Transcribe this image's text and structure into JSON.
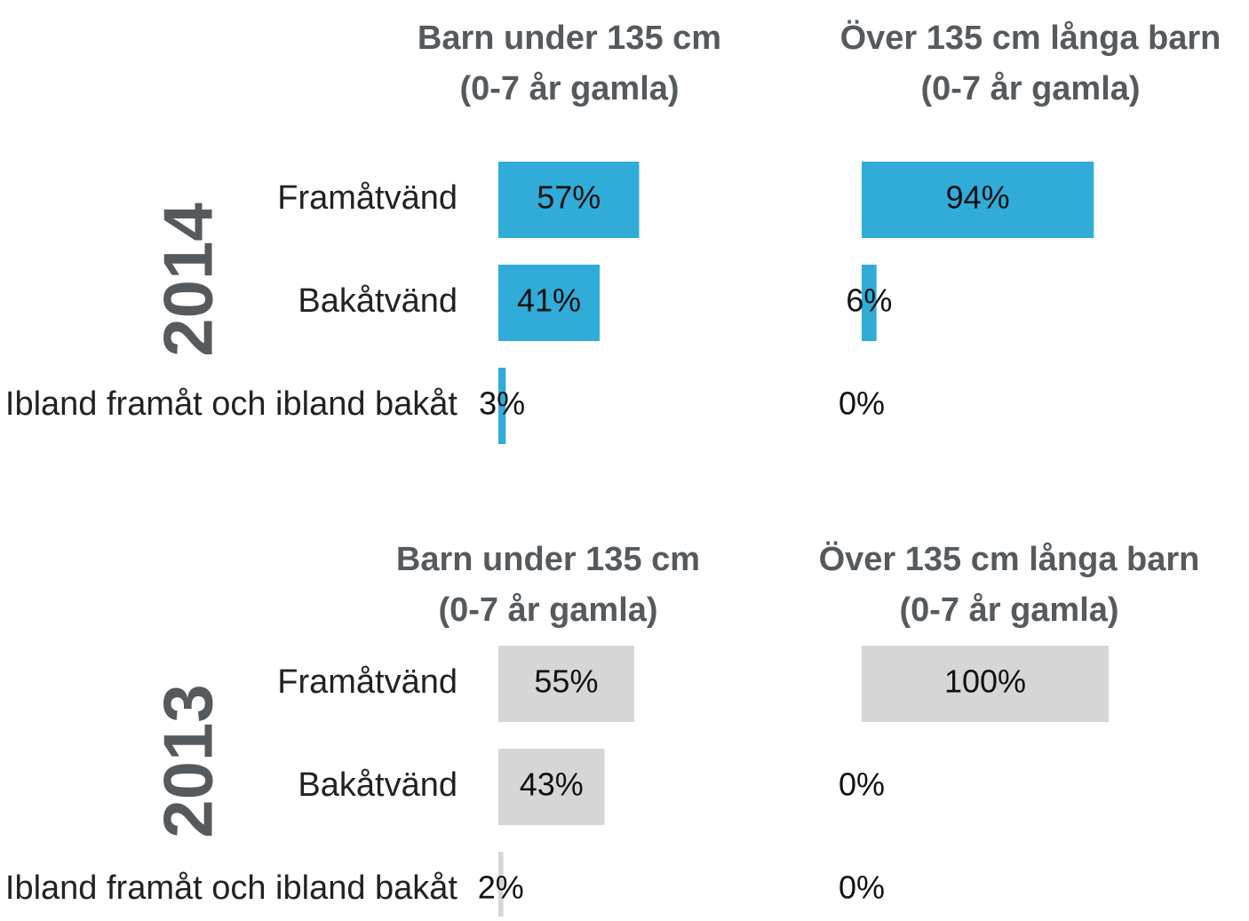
{
  "chart_data": [
    {
      "type": "bar",
      "title": "2014",
      "subtitle": "(0-7 år gamla)",
      "categories": [
        "Framåtvänd",
        "Bakåtvänd",
        "Ibland framåt och ibland bakåt"
      ],
      "xlim": [
        0,
        100
      ],
      "series": [
        {
          "name": "Barn under 135 cm",
          "color": "#31acd9",
          "values": [
            57,
            41,
            3
          ],
          "value_labels": [
            "57%",
            "41%",
            "3%"
          ]
        },
        {
          "name": "Över 135 cm långa barn",
          "color": "#31acd9",
          "values": [
            94,
            6,
            0
          ],
          "value_labels": [
            "94%",
            "6%",
            "0%"
          ]
        }
      ]
    },
    {
      "type": "bar",
      "title": "2013",
      "subtitle": "(0-7 år gamla)",
      "categories": [
        "Framåtvänd",
        "Bakåtvänd",
        "Ibland framåt och ibland bakåt"
      ],
      "xlim": [
        0,
        100
      ],
      "series": [
        {
          "name": "Barn under 135 cm",
          "color": "#d6d6d6",
          "values": [
            55,
            43,
            2
          ],
          "value_labels": [
            "55%",
            "43%",
            "2%"
          ]
        },
        {
          "name": "Över 135 cm långa barn",
          "color": "#d6d6d6",
          "values": [
            100,
            0,
            0
          ],
          "value_labels": [
            "100%",
            "0%",
            "0%"
          ]
        }
      ]
    }
  ]
}
